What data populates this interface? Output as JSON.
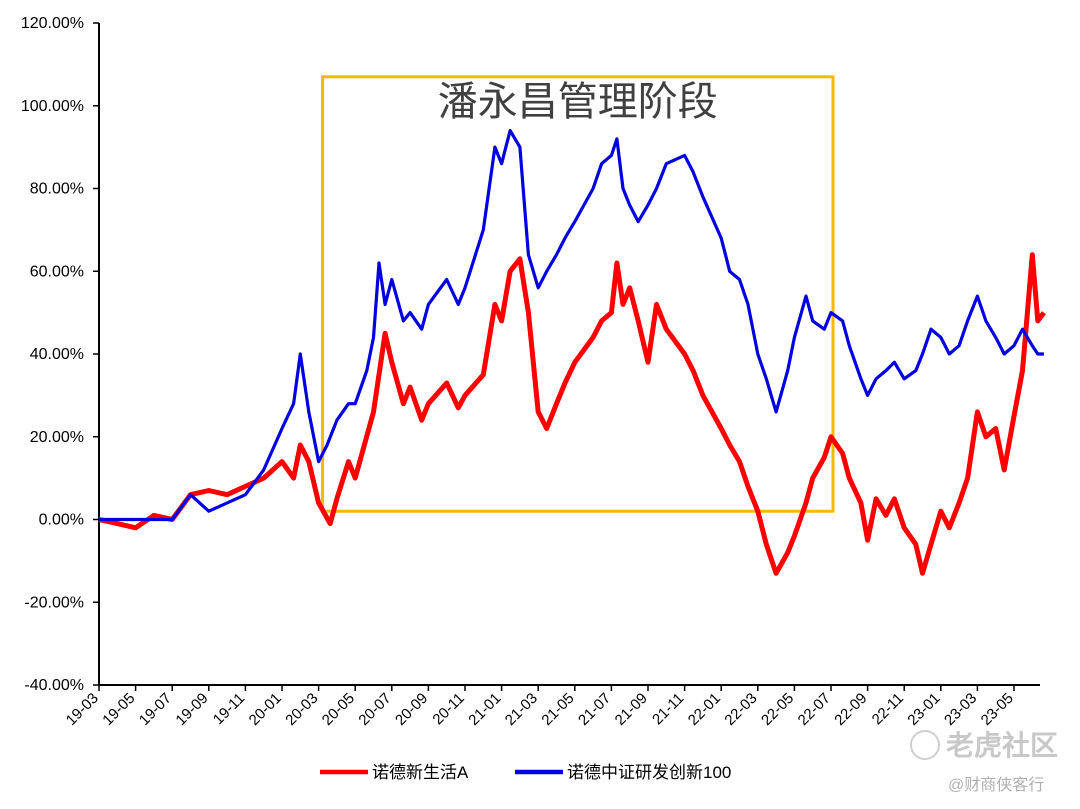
{
  "chart_data": {
    "type": "line",
    "ylim": [
      -40,
      120
    ],
    "y_ticks": [
      "-40.00%",
      "-20.00%",
      "0.00%",
      "20.00%",
      "40.00%",
      "60.00%",
      "80.00%",
      "100.00%",
      "120.00%"
    ],
    "x_ticks": [
      "19-03",
      "19-05",
      "19-07",
      "19-09",
      "19-11",
      "20-01",
      "20-03",
      "20-05",
      "20-07",
      "20-09",
      "20-11",
      "21-01",
      "21-03",
      "21-05",
      "21-07",
      "21-09",
      "21-11",
      "22-01",
      "22-03",
      "22-05",
      "22-07",
      "22-09",
      "22-11",
      "23-01",
      "23-03",
      "23-05"
    ],
    "legend_position": "bottom",
    "annotation": {
      "text": "潘永昌管理阶段",
      "x_start": "20-03",
      "x_end": "22-07",
      "y_range": [
        2,
        107
      ],
      "color": "#FFB800"
    },
    "series": [
      {
        "name": "诺德新生活A",
        "color": "#FF0000",
        "points": [
          [
            "2019-03",
            0
          ],
          [
            "2019-04",
            -1
          ],
          [
            "2019-05",
            -2
          ],
          [
            "2019-06",
            1
          ],
          [
            "2019-07",
            0
          ],
          [
            "2019-08",
            6
          ],
          [
            "2019-09",
            7
          ],
          [
            "2019-10",
            6
          ],
          [
            "2019-11",
            8
          ],
          [
            "2019-12",
            10
          ],
          [
            "2020-01",
            14
          ],
          [
            "2020-01-20",
            10
          ],
          [
            "2020-02",
            18
          ],
          [
            "2020-02-15",
            14
          ],
          [
            "2020-03",
            4
          ],
          [
            "2020-03-20",
            -1
          ],
          [
            "2020-04",
            5
          ],
          [
            "2020-04-20",
            14
          ],
          [
            "2020-05",
            10
          ],
          [
            "2020-06",
            26
          ],
          [
            "2020-06-20",
            45
          ],
          [
            "2020-07",
            38
          ],
          [
            "2020-07-20",
            28
          ],
          [
            "2020-08",
            32
          ],
          [
            "2020-08-20",
            24
          ],
          [
            "2020-09",
            28
          ],
          [
            "2020-10",
            33
          ],
          [
            "2020-10-20",
            27
          ],
          [
            "2020-11",
            30
          ],
          [
            "2020-12",
            35
          ],
          [
            "2020-12-20",
            52
          ],
          [
            "2021-01",
            48
          ],
          [
            "2021-01-15",
            60
          ],
          [
            "2021-02",
            63
          ],
          [
            "2021-02-15",
            50
          ],
          [
            "2021-03",
            26
          ],
          [
            "2021-03-15",
            22
          ],
          [
            "2021-04",
            28
          ],
          [
            "2021-04-15",
            33
          ],
          [
            "2021-05",
            38
          ],
          [
            "2021-06",
            44
          ],
          [
            "2021-06-15",
            48
          ],
          [
            "2021-07",
            50
          ],
          [
            "2021-07-10",
            62
          ],
          [
            "2021-07-20",
            52
          ],
          [
            "2021-08",
            56
          ],
          [
            "2021-08-15",
            48
          ],
          [
            "2021-09",
            38
          ],
          [
            "2021-09-15",
            52
          ],
          [
            "2021-10",
            46
          ],
          [
            "2021-11",
            40
          ],
          [
            "2021-11-15",
            36
          ],
          [
            "2021-12",
            30
          ],
          [
            "2022-01",
            22
          ],
          [
            "2022-01-15",
            18
          ],
          [
            "2022-02",
            14
          ],
          [
            "2022-02-15",
            8
          ],
          [
            "2022-03",
            2
          ],
          [
            "2022-03-15",
            -6
          ],
          [
            "2022-04",
            -13
          ],
          [
            "2022-04-20",
            -8
          ],
          [
            "2022-05",
            -4
          ],
          [
            "2022-05-20",
            4
          ],
          [
            "2022-06",
            10
          ],
          [
            "2022-06-20",
            15
          ],
          [
            "2022-07",
            20
          ],
          [
            "2022-07-20",
            16
          ],
          [
            "2022-08",
            10
          ],
          [
            "2022-08-20",
            4
          ],
          [
            "2022-09",
            -5
          ],
          [
            "2022-09-15",
            5
          ],
          [
            "2022-10",
            1
          ],
          [
            "2022-10-15",
            5
          ],
          [
            "2022-11",
            -2
          ],
          [
            "2022-11-20",
            -6
          ],
          [
            "2022-12",
            -13
          ],
          [
            "2022-12-15",
            -6
          ],
          [
            "2023-01",
            2
          ],
          [
            "2023-01-15",
            -2
          ],
          [
            "2023-02",
            4
          ],
          [
            "2023-02-15",
            10
          ],
          [
            "2023-03",
            26
          ],
          [
            "2023-03-15",
            20
          ],
          [
            "2023-04",
            22
          ],
          [
            "2023-04-15",
            12
          ],
          [
            "2023-05",
            25
          ],
          [
            "2023-05-15",
            36
          ],
          [
            "2023-06",
            64
          ],
          [
            "2023-06-10",
            48
          ],
          [
            "2023-06-20",
            50
          ]
        ]
      },
      {
        "name": "诺德中证研发创新100",
        "color": "#0000E0",
        "points": [
          [
            "2019-03",
            0
          ],
          [
            "2019-05",
            0
          ],
          [
            "2019-07",
            0
          ],
          [
            "2019-08",
            6
          ],
          [
            "2019-09",
            2
          ],
          [
            "2019-10",
            4
          ],
          [
            "2019-11",
            6
          ],
          [
            "2019-12",
            12
          ],
          [
            "2020-01",
            22
          ],
          [
            "2020-01-20",
            28
          ],
          [
            "2020-02",
            40
          ],
          [
            "2020-02-15",
            26
          ],
          [
            "2020-03",
            14
          ],
          [
            "2020-03-15",
            18
          ],
          [
            "2020-04",
            24
          ],
          [
            "2020-04-20",
            28
          ],
          [
            "2020-05",
            28
          ],
          [
            "2020-05-20",
            36
          ],
          [
            "2020-06",
            44
          ],
          [
            "2020-06-10",
            62
          ],
          [
            "2020-06-20",
            52
          ],
          [
            "2020-07",
            58
          ],
          [
            "2020-07-20",
            48
          ],
          [
            "2020-08",
            50
          ],
          [
            "2020-08-20",
            46
          ],
          [
            "2020-09",
            52
          ],
          [
            "2020-10",
            58
          ],
          [
            "2020-10-20",
            52
          ],
          [
            "2020-11",
            56
          ],
          [
            "2020-12",
            70
          ],
          [
            "2020-12-20",
            90
          ],
          [
            "2021-01",
            86
          ],
          [
            "2021-01-15",
            94
          ],
          [
            "2021-02",
            90
          ],
          [
            "2021-02-15",
            64
          ],
          [
            "2021-03",
            56
          ],
          [
            "2021-03-15",
            60
          ],
          [
            "2021-04",
            64
          ],
          [
            "2021-04-15",
            68
          ],
          [
            "2021-05",
            72
          ],
          [
            "2021-06",
            80
          ],
          [
            "2021-06-15",
            86
          ],
          [
            "2021-07",
            88
          ],
          [
            "2021-07-10",
            92
          ],
          [
            "2021-07-20",
            80
          ],
          [
            "2021-08",
            76
          ],
          [
            "2021-08-15",
            72
          ],
          [
            "2021-09",
            76
          ],
          [
            "2021-09-15",
            80
          ],
          [
            "2021-10",
            86
          ],
          [
            "2021-11",
            88
          ],
          [
            "2021-11-15",
            84
          ],
          [
            "2021-12",
            78
          ],
          [
            "2022-01",
            68
          ],
          [
            "2022-01-15",
            60
          ],
          [
            "2022-02",
            58
          ],
          [
            "2022-02-15",
            52
          ],
          [
            "2022-03",
            40
          ],
          [
            "2022-03-15",
            34
          ],
          [
            "2022-04",
            26
          ],
          [
            "2022-04-20",
            36
          ],
          [
            "2022-05",
            44
          ],
          [
            "2022-05-20",
            54
          ],
          [
            "2022-06",
            48
          ],
          [
            "2022-06-20",
            46
          ],
          [
            "2022-07",
            50
          ],
          [
            "2022-07-20",
            48
          ],
          [
            "2022-08",
            42
          ],
          [
            "2022-08-20",
            34
          ],
          [
            "2022-09",
            30
          ],
          [
            "2022-09-15",
            34
          ],
          [
            "2022-10",
            36
          ],
          [
            "2022-10-15",
            38
          ],
          [
            "2022-11",
            34
          ],
          [
            "2022-11-20",
            36
          ],
          [
            "2022-12",
            40
          ],
          [
            "2022-12-15",
            46
          ],
          [
            "2023-01",
            44
          ],
          [
            "2023-01-15",
            40
          ],
          [
            "2023-02",
            42
          ],
          [
            "2023-02-15",
            48
          ],
          [
            "2023-03",
            54
          ],
          [
            "2023-03-15",
            48
          ],
          [
            "2023-04",
            44
          ],
          [
            "2023-04-15",
            40
          ],
          [
            "2023-05",
            42
          ],
          [
            "2023-05-15",
            46
          ],
          [
            "2023-06",
            42
          ],
          [
            "2023-06-10",
            40
          ],
          [
            "2023-06-20",
            40
          ]
        ]
      }
    ]
  },
  "watermark": {
    "main": "老虎社区",
    "sub": "@财商侠客行"
  }
}
